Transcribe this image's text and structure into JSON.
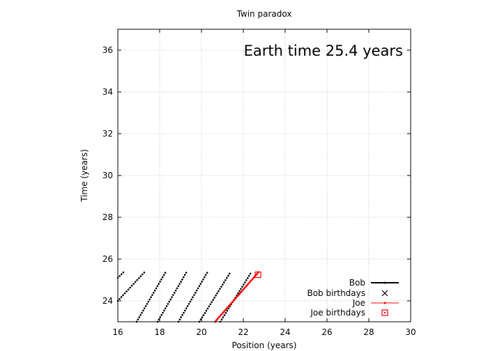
{
  "chart_data": {
    "type": "line",
    "title": "Twin paradox",
    "annotation": "Earth time 25.4 years",
    "xlabel": "Position (years)",
    "ylabel": "Time (years)",
    "xlim": [
      16,
      30
    ],
    "ylim": [
      23,
      37
    ],
    "xticks": [
      "16",
      "18",
      "20",
      "22",
      "24",
      "26",
      "28",
      "30"
    ],
    "yticks": [
      "24",
      "26",
      "28",
      "30",
      "32",
      "34",
      "36"
    ],
    "grid": true,
    "legend_position": "bottom-right",
    "colors": {
      "bob": "#000000",
      "joe": "#ff0000"
    },
    "series": [
      {
        "name": "Bob",
        "style": "dotted-lines",
        "segments": [
          {
            "x": [
              16.0,
              16.3
            ],
            "y": [
              25.1,
              25.4
            ]
          },
          {
            "x": [
              16.0,
              17.3
            ],
            "y": [
              24.0,
              25.4
            ]
          },
          {
            "x": [
              16.9,
              18.3
            ],
            "y": [
              23.0,
              25.4
            ]
          },
          {
            "x": [
              17.9,
              19.3
            ],
            "y": [
              23.0,
              25.4
            ]
          },
          {
            "x": [
              18.9,
              20.3
            ],
            "y": [
              23.0,
              25.4
            ]
          },
          {
            "x": [
              19.9,
              21.4
            ],
            "y": [
              23.0,
              25.4
            ]
          },
          {
            "x": [
              20.9,
              22.4
            ],
            "y": [
              23.0,
              25.4
            ]
          }
        ]
      },
      {
        "name": "Bob birthdays",
        "marker": "x",
        "points": []
      },
      {
        "name": "Joe",
        "style": "line",
        "segments": [
          {
            "x": [
              20.65,
              22.75
            ],
            "y": [
              23.0,
              25.4
            ]
          }
        ]
      },
      {
        "name": "Joe birthdays",
        "marker": "square",
        "points": [
          {
            "x": 22.7,
            "y": 25.25
          }
        ]
      }
    ]
  }
}
